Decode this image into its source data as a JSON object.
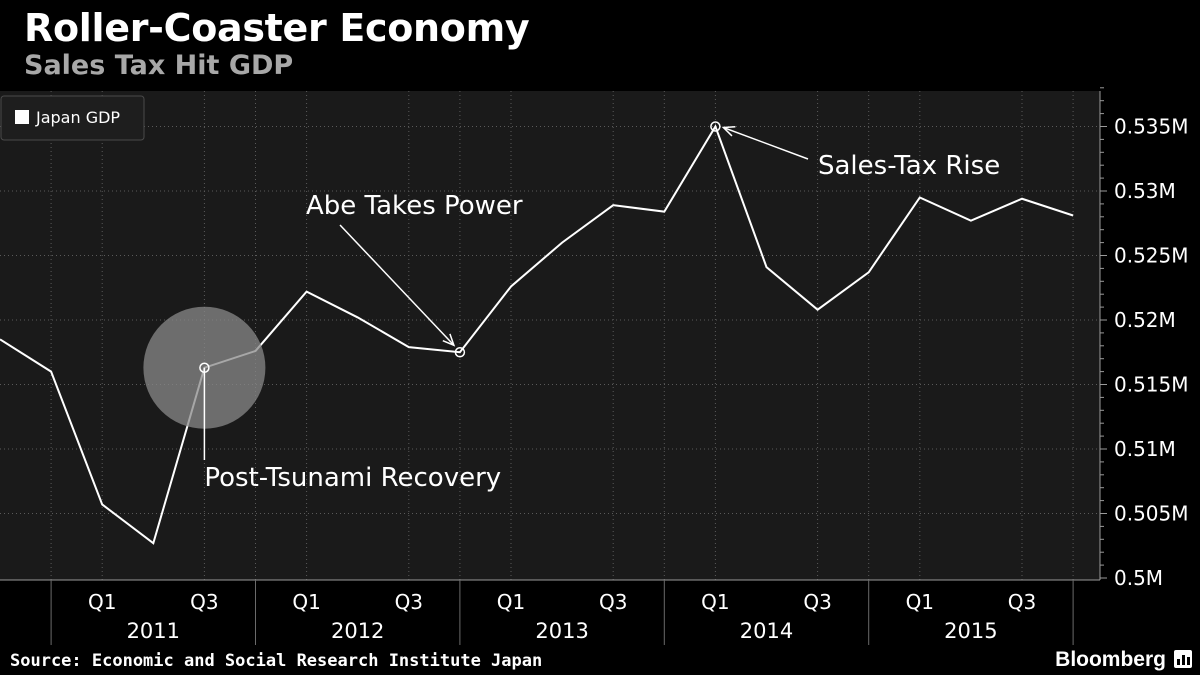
{
  "header": {
    "title": "Roller-Coaster Economy",
    "subtitle": "Sales Tax Hit GDP"
  },
  "footer": {
    "source": "Source: Economic and Social Research Institute Japan",
    "brand": "Bloomberg"
  },
  "colors": {
    "background": "#000000",
    "plot_background": "#1a1a1a",
    "line": "#ffffff",
    "grid": "#5a5a5a",
    "subtitle": "#a8a8a8"
  },
  "chart_data": {
    "type": "line",
    "title": "Roller-Coaster Economy",
    "subtitle": "Sales Tax Hit GDP",
    "xlabel": "",
    "ylabel": "",
    "legend": {
      "position": "top-left",
      "entries": [
        "Japan GDP"
      ]
    },
    "grid": true,
    "y_axis": {
      "side": "right",
      "ylim": [
        0.5,
        0.538
      ],
      "ticks": [
        0.5,
        0.505,
        0.51,
        0.515,
        0.52,
        0.525,
        0.53,
        0.535
      ],
      "tick_labels": [
        "0.5M",
        "0.505M",
        "0.51M",
        "0.515M",
        "0.52M",
        "0.525M",
        "0.53M",
        "0.535M"
      ]
    },
    "x_axis": {
      "quarter_labels": [
        "Q1",
        "Q3",
        "Q1",
        "Q3",
        "Q1",
        "Q3",
        "Q1",
        "Q3",
        "Q1",
        "Q3"
      ],
      "quarter_label_indices": [
        2,
        4,
        6,
        8,
        10,
        12,
        14,
        16,
        18,
        20
      ],
      "years": [
        "2011",
        "2012",
        "2013",
        "2014",
        "2015"
      ]
    },
    "series": [
      {
        "name": "Japan GDP",
        "x": [
          "2010 Q3",
          "2010 Q4",
          "2011 Q1",
          "2011 Q2",
          "2011 Q3",
          "2011 Q4",
          "2012 Q1",
          "2012 Q2",
          "2012 Q3",
          "2012 Q4",
          "2013 Q1",
          "2013 Q2",
          "2013 Q3",
          "2013 Q4",
          "2014 Q1",
          "2014 Q2",
          "2014 Q3",
          "2014 Q4",
          "2015 Q1",
          "2015 Q2",
          "2015 Q3",
          "2015 Q4"
        ],
        "values": [
          0.5185,
          0.516,
          0.5057,
          0.5027,
          0.5163,
          0.5176,
          0.5222,
          0.5202,
          0.5179,
          0.5175,
          0.5226,
          0.526,
          0.5289,
          0.5284,
          0.535,
          0.5241,
          0.5208,
          0.5237,
          0.5295,
          0.5277,
          0.5294,
          0.5281
        ]
      }
    ],
    "annotations": [
      {
        "label": "Post-Tsunami Recovery",
        "point_index": 4
      },
      {
        "label": "Abe Takes Power",
        "point_index": 9
      },
      {
        "label": "Sales-Tax Rise",
        "point_index": 14
      }
    ]
  }
}
